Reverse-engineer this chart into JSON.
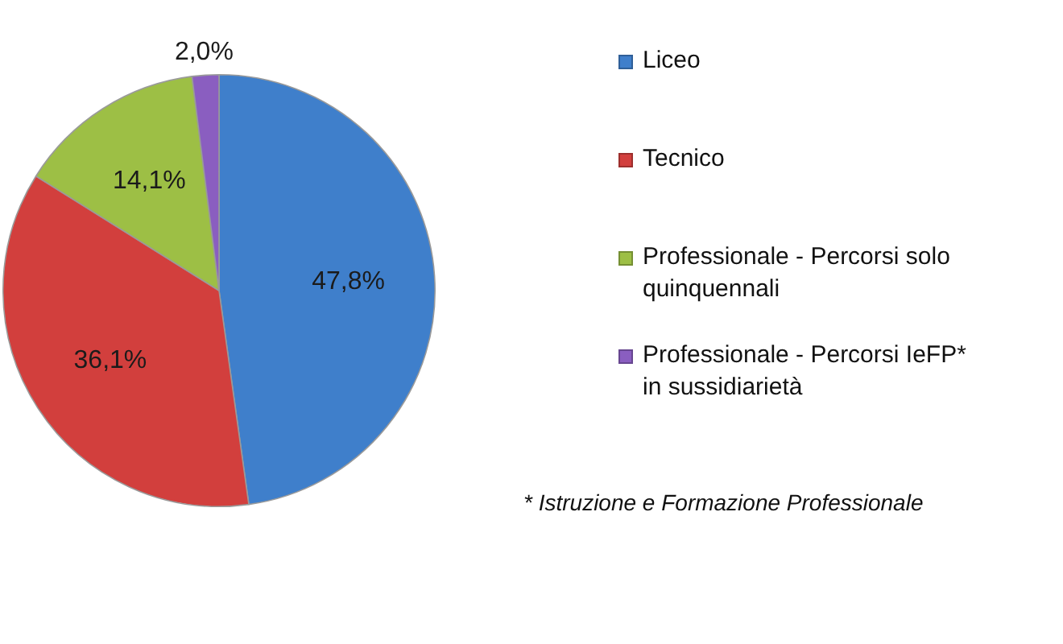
{
  "chart_data": {
    "type": "pie",
    "categories": [
      "Liceo",
      "Tecnico",
      "Professionale - Percorsi solo quinquennali",
      "Professionale - Percorsi IeFP* in sussidiarietà"
    ],
    "values": [
      47.8,
      36.1,
      14.1,
      2.0
    ],
    "colors": [
      "#3f7fcb",
      "#d23f3d",
      "#9dbf45",
      "#8a5ec0"
    ],
    "value_labels": [
      "47,8%",
      "36,1%",
      "14,1%",
      "2,0%"
    ],
    "legend": "right",
    "annotations": [
      "* Istruzione e Formazione Professionale"
    ]
  }
}
